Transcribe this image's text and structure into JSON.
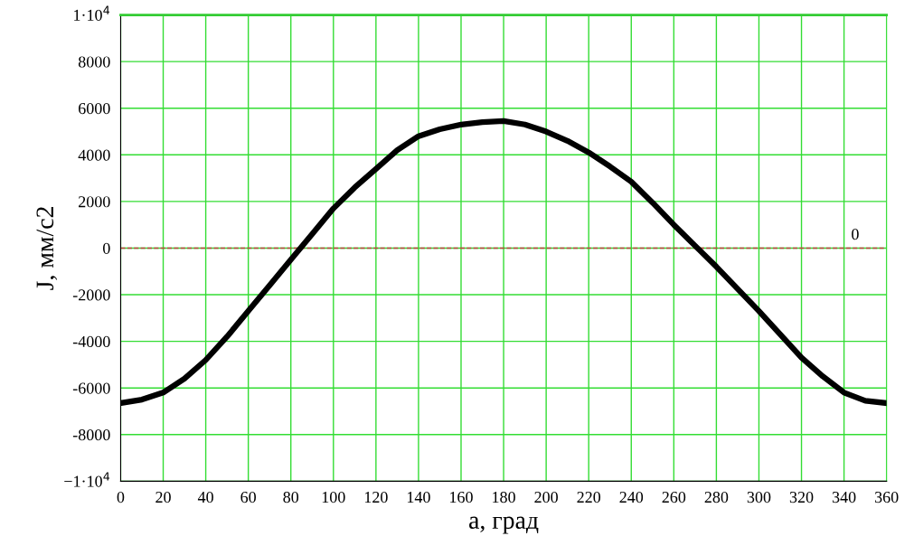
{
  "chart_data": {
    "type": "line",
    "xlabel": "a, град",
    "ylabel": "J, мм/с2",
    "x": [
      0,
      10,
      20,
      30,
      40,
      50,
      60,
      70,
      80,
      90,
      100,
      110,
      120,
      130,
      140,
      150,
      160,
      170,
      180,
      190,
      200,
      210,
      220,
      230,
      240,
      250,
      260,
      270,
      280,
      290,
      300,
      310,
      320,
      330,
      340,
      350,
      360
    ],
    "series": [
      {
        "color": "#000000",
        "values": [
          -6650,
          -6500,
          -6200,
          -5600,
          -4800,
          -3800,
          -2700,
          -1600,
          -500,
          600,
          1700,
          2600,
          3400,
          4200,
          4800,
          5100,
          5300,
          5400,
          5450,
          5300,
          5000,
          4600,
          4100,
          3500,
          2850,
          1950,
          1000,
          100,
          -800,
          -1750,
          -2700,
          -3700,
          -4700,
          -5500,
          -6200,
          -6550,
          -6650
        ]
      }
    ],
    "xlim": [
      0,
      360
    ],
    "xticks": [
      0,
      20,
      40,
      60,
      80,
      100,
      120,
      140,
      160,
      180,
      200,
      220,
      240,
      260,
      280,
      300,
      320,
      340,
      360
    ],
    "ylim": [
      -10000,
      10000
    ],
    "yticks": [
      {
        "value": -10000,
        "label": "−1·10$^{4}$"
      },
      -8000,
      -6000,
      -4000,
      -2000,
      0,
      2000,
      4000,
      6000,
      8000,
      {
        "value": 10000,
        "label": "1·10$^{4}$"
      }
    ],
    "grid": true,
    "marker": "none",
    "line_style": "solid",
    "ref_lines": [
      {
        "axis": "y",
        "value": 0,
        "label": "0",
        "color": "#c04040",
        "line_style": "dashed"
      }
    ]
  }
}
